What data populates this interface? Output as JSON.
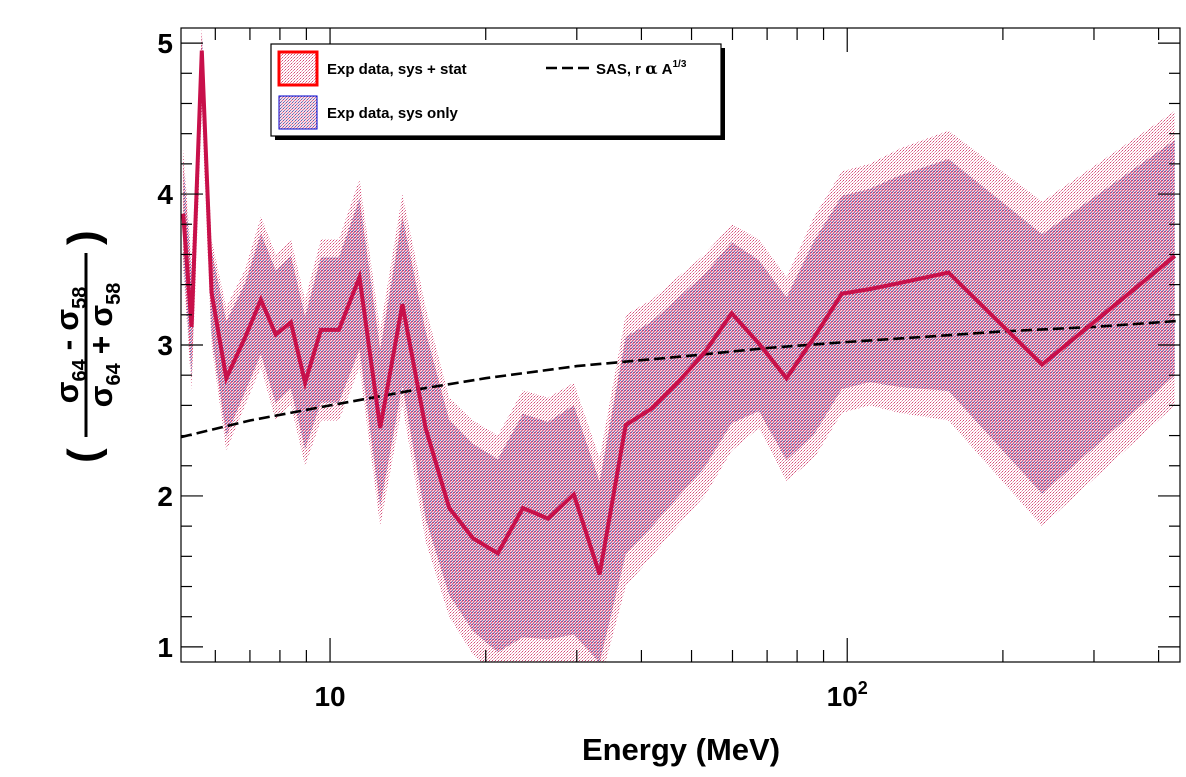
{
  "chart_data": {
    "type": "line",
    "xlabel": "Energy (MeV)",
    "ylabel": {
      "lparen": "(",
      "rparen": ")",
      "num_a": "σ",
      "num_a_sub": "64",
      "num_op": " - ",
      "num_b": "σ",
      "num_b_sub": "58",
      "den_a": "σ",
      "den_a_sub": "64",
      "den_op": " + ",
      "den_b": "σ",
      "den_b_sub": "58"
    },
    "x_scale": "log",
    "xlim": [
      5.15,
      440
    ],
    "ylim": [
      0.9,
      5.1
    ],
    "x_ticks": [
      {
        "value": 10,
        "label": "10"
      },
      {
        "value": 100,
        "label": "10",
        "sup": "2"
      }
    ],
    "y_ticks": [
      1,
      2,
      3,
      4,
      5
    ],
    "grid": false,
    "legend": {
      "placement": "top-left",
      "entries": [
        {
          "label": "Exp data, sys + stat",
          "kind": "band-red"
        },
        {
          "label": "Exp data, sys only",
          "kind": "band-blue"
        },
        {
          "label": "SAS, r ",
          "alpha": "α",
          "label_end": " A",
          "sup": "1/3",
          "kind": "dashed"
        }
      ]
    },
    "colors": {
      "exp_line": "#c8104a",
      "band_stat": "#c49aa8",
      "band_sys": "#8aa0d8",
      "sas_line": "#000000",
      "legend_red_border": "#ff0000",
      "legend_blue_border": "#0000cc"
    },
    "series": [
      {
        "name": "Exp data",
        "x": [
          5.2,
          5.4,
          5.65,
          5.9,
          6.3,
          6.85,
          7.35,
          7.85,
          8.4,
          8.95,
          9.6,
          10.4,
          11.4,
          12.5,
          13.8,
          15.3,
          17.0,
          18.9,
          21.1,
          23.6,
          26.4,
          29.6,
          33.2,
          37.3,
          41.9,
          47.0,
          53.0,
          59.8,
          67.5,
          76.3,
          86.3,
          97.6,
          110.5,
          126.1,
          157,
          238.1,
          430
        ]
      },
      {
        "name": "Exp data, sys + stat",
        "values": [
          3.87,
          3.12,
          4.95,
          3.35,
          2.78,
          3.05,
          3.3,
          3.07,
          3.15,
          2.75,
          3.1,
          3.1,
          3.45,
          2.45,
          3.27,
          2.45,
          1.92,
          1.72,
          1.62,
          1.92,
          1.85,
          2.01,
          1.48,
          2.47,
          2.58,
          2.75,
          2.95,
          3.21,
          3.01,
          2.78,
          3.05,
          3.34,
          3.37,
          3.41,
          3.48,
          2.87,
          3.59
        ],
        "band_low": [
          3.5,
          2.7,
          4.55,
          3.0,
          2.3,
          2.6,
          2.85,
          2.5,
          2.6,
          2.2,
          2.5,
          2.5,
          2.85,
          1.8,
          2.6,
          1.7,
          1.2,
          0.95,
          0.8,
          0.85,
          0.85,
          0.85,
          0.75,
          1.4,
          1.6,
          1.8,
          2.0,
          2.3,
          2.45,
          2.1,
          2.25,
          2.55,
          2.6,
          2.55,
          2.5,
          1.8,
          2.6
        ],
        "band_high": [
          4.3,
          3.55,
          5.1,
          3.7,
          3.25,
          3.5,
          3.85,
          3.6,
          3.7,
          3.3,
          3.7,
          3.7,
          4.1,
          3.1,
          4.0,
          3.25,
          2.65,
          2.5,
          2.4,
          2.7,
          2.65,
          2.75,
          2.25,
          3.2,
          3.3,
          3.45,
          3.6,
          3.8,
          3.7,
          3.45,
          3.85,
          4.15,
          4.2,
          4.3,
          4.42,
          3.95,
          4.55
        ]
      },
      {
        "name": "SAS, r α A^1/3",
        "x": [
          5.15,
          7,
          10,
          15,
          20,
          30,
          50,
          70,
          100,
          150,
          200,
          300,
          440
        ],
        "values": [
          2.39,
          2.5,
          2.6,
          2.71,
          2.78,
          2.86,
          2.93,
          2.98,
          3.02,
          3.06,
          3.09,
          3.12,
          3.16
        ]
      }
    ]
  }
}
